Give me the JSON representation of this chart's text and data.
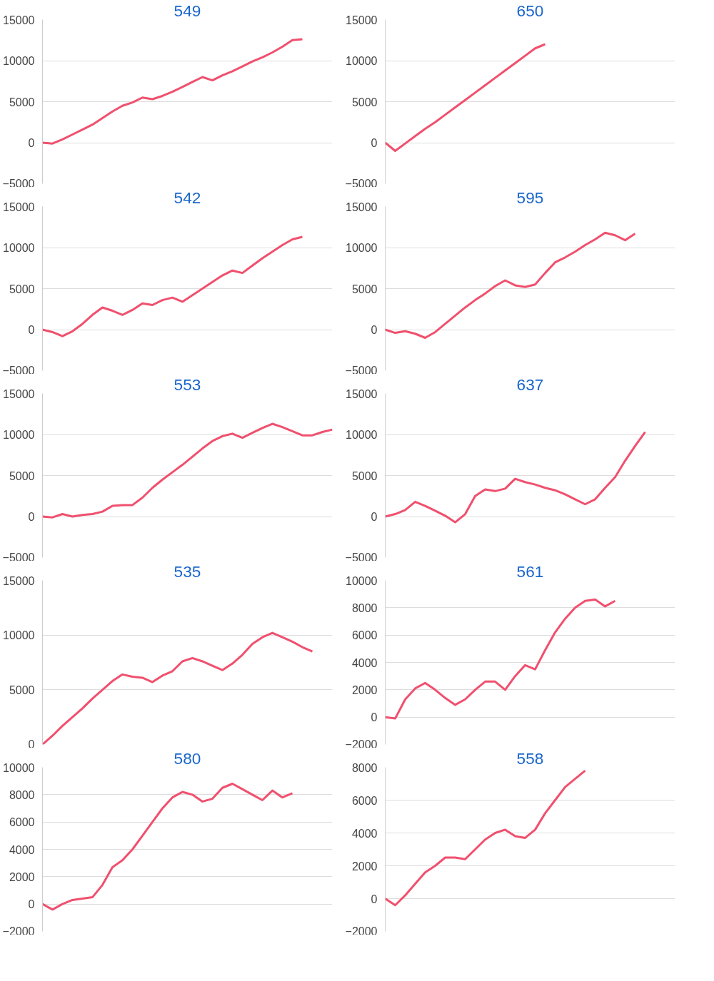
{
  "chart_data": [
    {
      "type": "line",
      "title": "549",
      "categories": [
        null,
        null,
        null,
        null,
        null,
        null,
        null,
        null,
        null,
        null,
        null,
        null,
        null,
        null,
        null,
        null,
        null,
        null,
        null,
        null,
        null,
        null,
        null,
        null,
        null,
        null,
        null,
        null,
        null,
        null
      ],
      "series": [
        {
          "color": "#f0506e",
          "values": [
            0,
            -100,
            400,
            1000,
            1600,
            2200,
            3000,
            3800,
            4500,
            4900,
            5500,
            5300,
            5700,
            6200,
            6800,
            7400,
            8000,
            7600,
            8200,
            8700,
            9300,
            9900,
            10400,
            11000,
            11700,
            12500,
            12600,
            null,
            null,
            null
          ]
        }
      ],
      "ylim": [
        -5000,
        15000
      ],
      "yticks": [
        -5000,
        0,
        5000,
        10000,
        15000
      ],
      "grid": "y",
      "tick_labels": "y"
    },
    {
      "type": "line",
      "title": "650",
      "categories": [
        null,
        null,
        null,
        null,
        null,
        null,
        null,
        null,
        null,
        null,
        null,
        null,
        null,
        null,
        null,
        null,
        null,
        null,
        null,
        null,
        null,
        null,
        null,
        null,
        null,
        null,
        null,
        null,
        null,
        null
      ],
      "series": [
        {
          "color": "#f0506e",
          "values": [
            0,
            -1000,
            -100,
            800,
            1700,
            2500,
            3400,
            4300,
            5200,
            6100,
            7000,
            7900,
            8800,
            9700,
            10600,
            11500,
            12000,
            null,
            null,
            null,
            null,
            null,
            null,
            null,
            null,
            null,
            null,
            null,
            null,
            null
          ]
        }
      ],
      "ylim": [
        -5000,
        15000
      ],
      "yticks": [
        -5000,
        0,
        5000,
        10000,
        15000
      ],
      "grid": "y",
      "tick_labels": "y"
    },
    {
      "type": "line",
      "title": "542",
      "categories": [
        null,
        null,
        null,
        null,
        null,
        null,
        null,
        null,
        null,
        null,
        null,
        null,
        null,
        null,
        null,
        null,
        null,
        null,
        null,
        null,
        null,
        null,
        null,
        null,
        null,
        null,
        null,
        null,
        null,
        null
      ],
      "series": [
        {
          "color": "#f0506e",
          "values": [
            0,
            -300,
            -800,
            -200,
            700,
            1800,
            2700,
            2300,
            1800,
            2400,
            3200,
            3000,
            3600,
            3900,
            3400,
            4200,
            5000,
            5800,
            6600,
            7200,
            6900,
            7800,
            8700,
            9500,
            10300,
            11000,
            11300,
            null,
            null,
            null
          ]
        }
      ],
      "ylim": [
        -5000,
        15000
      ],
      "yticks": [
        -5000,
        0,
        5000,
        10000,
        15000
      ],
      "grid": "y",
      "tick_labels": "y"
    },
    {
      "type": "line",
      "title": "595",
      "categories": [
        null,
        null,
        null,
        null,
        null,
        null,
        null,
        null,
        null,
        null,
        null,
        null,
        null,
        null,
        null,
        null,
        null,
        null,
        null,
        null,
        null,
        null,
        null,
        null,
        null,
        null,
        null,
        null,
        null,
        null
      ],
      "series": [
        {
          "color": "#f0506e",
          "values": [
            0,
            -400,
            -200,
            -500,
            -1000,
            -300,
            700,
            1700,
            2700,
            3600,
            4400,
            5300,
            6000,
            5400,
            5200,
            5500,
            6900,
            8200,
            8800,
            9500,
            10300,
            11000,
            11800,
            11500,
            10900,
            11700,
            null,
            null,
            null,
            null
          ]
        }
      ],
      "ylim": [
        -5000,
        15000
      ],
      "yticks": [
        -5000,
        0,
        5000,
        10000,
        15000
      ],
      "grid": "y",
      "tick_labels": "y"
    },
    {
      "type": "line",
      "title": "553",
      "categories": [
        null,
        null,
        null,
        null,
        null,
        null,
        null,
        null,
        null,
        null,
        null,
        null,
        null,
        null,
        null,
        null,
        null,
        null,
        null,
        null,
        null,
        null,
        null,
        null,
        null,
        null,
        null,
        null,
        null,
        null
      ],
      "series": [
        {
          "color": "#f0506e",
          "values": [
            0,
            -100,
            300,
            0,
            200,
            300,
            600,
            1300,
            1400,
            1400,
            2300,
            3500,
            4500,
            5400,
            6300,
            7300,
            8300,
            9200,
            9800,
            10100,
            9600,
            10200,
            10800,
            11300,
            10900,
            10400,
            9900,
            9900,
            10300,
            10600
          ]
        }
      ],
      "ylim": [
        -5000,
        15000
      ],
      "yticks": [
        -5000,
        0,
        5000,
        10000,
        15000
      ],
      "grid": "y",
      "tick_labels": "y"
    },
    {
      "type": "line",
      "title": "637",
      "categories": [
        null,
        null,
        null,
        null,
        null,
        null,
        null,
        null,
        null,
        null,
        null,
        null,
        null,
        null,
        null,
        null,
        null,
        null,
        null,
        null,
        null,
        null,
        null,
        null,
        null,
        null,
        null,
        null,
        null,
        null
      ],
      "series": [
        {
          "color": "#f0506e",
          "values": [
            0,
            300,
            800,
            1800,
            1300,
            700,
            100,
            -700,
            300,
            2500,
            3300,
            3100,
            3400,
            4600,
            4200,
            3900,
            3500,
            3200,
            2700,
            2100,
            1500,
            2100,
            3500,
            4800,
            6800,
            8600,
            10300,
            null,
            null,
            null
          ]
        }
      ],
      "ylim": [
        -5000,
        15000
      ],
      "yticks": [
        -5000,
        0,
        5000,
        10000,
        15000
      ],
      "grid": "y",
      "tick_labels": "y"
    },
    {
      "type": "line",
      "title": "535",
      "categories": [
        null,
        null,
        null,
        null,
        null,
        null,
        null,
        null,
        null,
        null,
        null,
        null,
        null,
        null,
        null,
        null,
        null,
        null,
        null,
        null,
        null,
        null,
        null,
        null,
        null,
        null,
        null,
        null,
        null,
        null
      ],
      "series": [
        {
          "color": "#f0506e",
          "values": [
            0,
            800,
            1700,
            2500,
            3300,
            4200,
            5000,
            5800,
            6400,
            6200,
            6100,
            5700,
            6300,
            6700,
            7600,
            7900,
            7600,
            7200,
            6800,
            7400,
            8200,
            9200,
            9800,
            10200,
            9800,
            9400,
            8900,
            8500,
            null,
            null
          ]
        }
      ],
      "ylim": [
        0,
        15000
      ],
      "yticks": [
        0,
        5000,
        10000,
        15000
      ],
      "grid": "y",
      "tick_labels": "y"
    },
    {
      "type": "line",
      "title": "561",
      "categories": [
        null,
        null,
        null,
        null,
        null,
        null,
        null,
        null,
        null,
        null,
        null,
        null,
        null,
        null,
        null,
        null,
        null,
        null,
        null,
        null,
        null,
        null,
        null,
        null,
        null,
        null,
        null,
        null,
        null,
        null
      ],
      "series": [
        {
          "color": "#f0506e",
          "values": [
            0,
            -100,
            1300,
            2100,
            2500,
            2000,
            1400,
            900,
            1300,
            2000,
            2600,
            2600,
            2000,
            3000,
            3800,
            3500,
            4900,
            6200,
            7200,
            8000,
            8500,
            8600,
            8100,
            8500,
            null,
            null,
            null,
            null,
            null,
            null
          ]
        }
      ],
      "ylim": [
        -2000,
        10000
      ],
      "yticks": [
        -2000,
        0,
        2000,
        4000,
        6000,
        8000,
        10000
      ],
      "grid": "y",
      "tick_labels": "y"
    },
    {
      "type": "line",
      "title": "580",
      "categories": [
        null,
        null,
        null,
        null,
        null,
        null,
        null,
        null,
        null,
        null,
        null,
        null,
        null,
        null,
        null,
        null,
        null,
        null,
        null,
        null,
        null,
        null,
        null,
        null,
        null,
        null,
        null,
        null,
        null,
        null
      ],
      "series": [
        {
          "color": "#f0506e",
          "values": [
            0,
            -400,
            0,
            300,
            400,
            500,
            1400,
            2700,
            3200,
            4000,
            5000,
            6000,
            7000,
            7800,
            8200,
            8000,
            7500,
            7700,
            8500,
            8800,
            8400,
            8000,
            7600,
            8300,
            7800,
            8100,
            null,
            null,
            null,
            null
          ]
        }
      ],
      "ylim": [
        -2000,
        10000
      ],
      "yticks": [
        -2000,
        0,
        2000,
        4000,
        6000,
        8000,
        10000
      ],
      "grid": "y",
      "tick_labels": "y"
    },
    {
      "type": "line",
      "title": "558",
      "categories": [
        null,
        null,
        null,
        null,
        null,
        null,
        null,
        null,
        null,
        null,
        null,
        null,
        null,
        null,
        null,
        null,
        null,
        null,
        null,
        null,
        null,
        null,
        null,
        null,
        null,
        null,
        null,
        null,
        null,
        null
      ],
      "series": [
        {
          "color": "#f0506e",
          "values": [
            0,
            -400,
            200,
            900,
            1600,
            2000,
            2500,
            2500,
            2400,
            3000,
            3600,
            4000,
            4200,
            3800,
            3700,
            4200,
            5200,
            6000,
            6800,
            7300,
            7800,
            null,
            null,
            null,
            null,
            null,
            null,
            null,
            null,
            null
          ]
        }
      ],
      "ylim": [
        -2000,
        8000
      ],
      "yticks": [
        -2000,
        0,
        2000,
        4000,
        6000,
        8000
      ],
      "grid": "y",
      "tick_labels": "y"
    }
  ]
}
